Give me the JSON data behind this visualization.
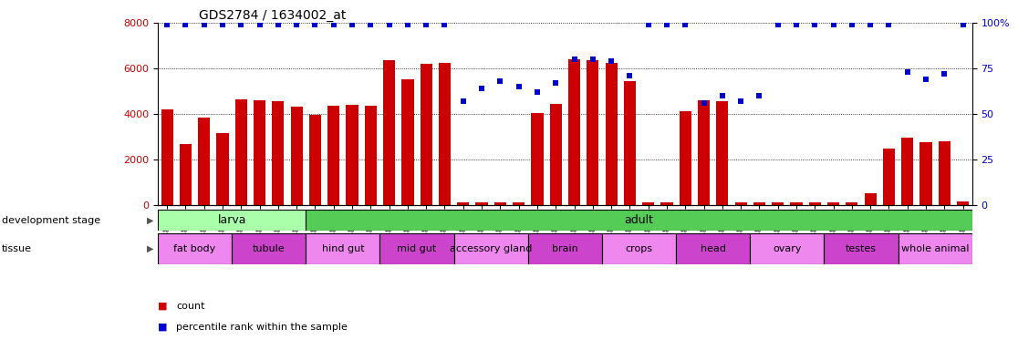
{
  "title": "GDS2784 / 1634002_at",
  "samples": [
    "GSM188092",
    "GSM188093",
    "GSM188094",
    "GSM188095",
    "GSM188100",
    "GSM188101",
    "GSM188102",
    "GSM188103",
    "GSM188072",
    "GSM188073",
    "GSM188074",
    "GSM188075",
    "GSM188076",
    "GSM188077",
    "GSM188078",
    "GSM188079",
    "GSM188080",
    "GSM188081",
    "GSM188082",
    "GSM188083",
    "GSM188084",
    "GSM188085",
    "GSM188086",
    "GSM188087",
    "GSM188088",
    "GSM188089",
    "GSM188090",
    "GSM188091",
    "GSM188096",
    "GSM188097",
    "GSM188098",
    "GSM188099",
    "GSM188104",
    "GSM188105",
    "GSM188106",
    "GSM188107",
    "GSM188108",
    "GSM188109",
    "GSM188110",
    "GSM188111",
    "GSM188112",
    "GSM188113",
    "GSM188114",
    "GSM188115"
  ],
  "counts": [
    4200,
    2650,
    3850,
    3150,
    4650,
    4600,
    4550,
    4300,
    3950,
    4350,
    4400,
    4350,
    6350,
    5500,
    6200,
    6250,
    100,
    100,
    100,
    100,
    4050,
    4450,
    6400,
    6350,
    6250,
    5450,
    100,
    100,
    4100,
    4600,
    4550,
    100,
    100,
    100,
    100,
    100,
    100,
    100,
    500,
    2450,
    2950,
    2750,
    2800,
    150
  ],
  "percentiles": [
    99,
    99,
    99,
    99,
    99,
    99,
    99,
    99,
    99,
    99,
    99,
    99,
    99,
    99,
    99,
    99,
    57,
    64,
    68,
    65,
    62,
    67,
    80,
    80,
    79,
    71,
    99,
    99,
    99,
    56,
    60,
    57,
    60,
    99,
    99,
    99,
    99,
    99,
    99,
    99,
    73,
    69,
    72,
    99
  ],
  "development_stages": [
    {
      "label": "larva",
      "start": 0,
      "end": 7,
      "color": "#aaffaa"
    },
    {
      "label": "adult",
      "start": 8,
      "end": 43,
      "color": "#55cc55"
    }
  ],
  "tissues": [
    {
      "label": "fat body",
      "start": 0,
      "end": 3,
      "color": "#ee88ee"
    },
    {
      "label": "tubule",
      "start": 4,
      "end": 7,
      "color": "#cc44cc"
    },
    {
      "label": "hind gut",
      "start": 8,
      "end": 11,
      "color": "#ee88ee"
    },
    {
      "label": "mid gut",
      "start": 12,
      "end": 15,
      "color": "#cc44cc"
    },
    {
      "label": "accessory gland",
      "start": 16,
      "end": 19,
      "color": "#ee88ee"
    },
    {
      "label": "brain",
      "start": 20,
      "end": 23,
      "color": "#cc44cc"
    },
    {
      "label": "crops",
      "start": 24,
      "end": 27,
      "color": "#ee88ee"
    },
    {
      "label": "head",
      "start": 28,
      "end": 31,
      "color": "#cc44cc"
    },
    {
      "label": "ovary",
      "start": 32,
      "end": 35,
      "color": "#ee88ee"
    },
    {
      "label": "testes",
      "start": 36,
      "end": 39,
      "color": "#cc44cc"
    },
    {
      "label": "whole animal",
      "start": 40,
      "end": 43,
      "color": "#ee88ee"
    }
  ],
  "bar_color": "#cc0000",
  "dot_color": "#0000cc",
  "ylim_left": [
    0,
    8000
  ],
  "ylim_right": [
    0,
    100
  ],
  "yticks_left": [
    0,
    2000,
    4000,
    6000,
    8000
  ],
  "yticks_right": [
    0,
    25,
    50,
    75,
    100
  ],
  "yticklabels_right": [
    "0",
    "25",
    "50",
    "75",
    "100%"
  ],
  "title_fontsize": 10,
  "tick_fontsize": 6.5,
  "label_fontsize": 8,
  "band_fontsize_dev": 9,
  "band_fontsize_tis": 8
}
